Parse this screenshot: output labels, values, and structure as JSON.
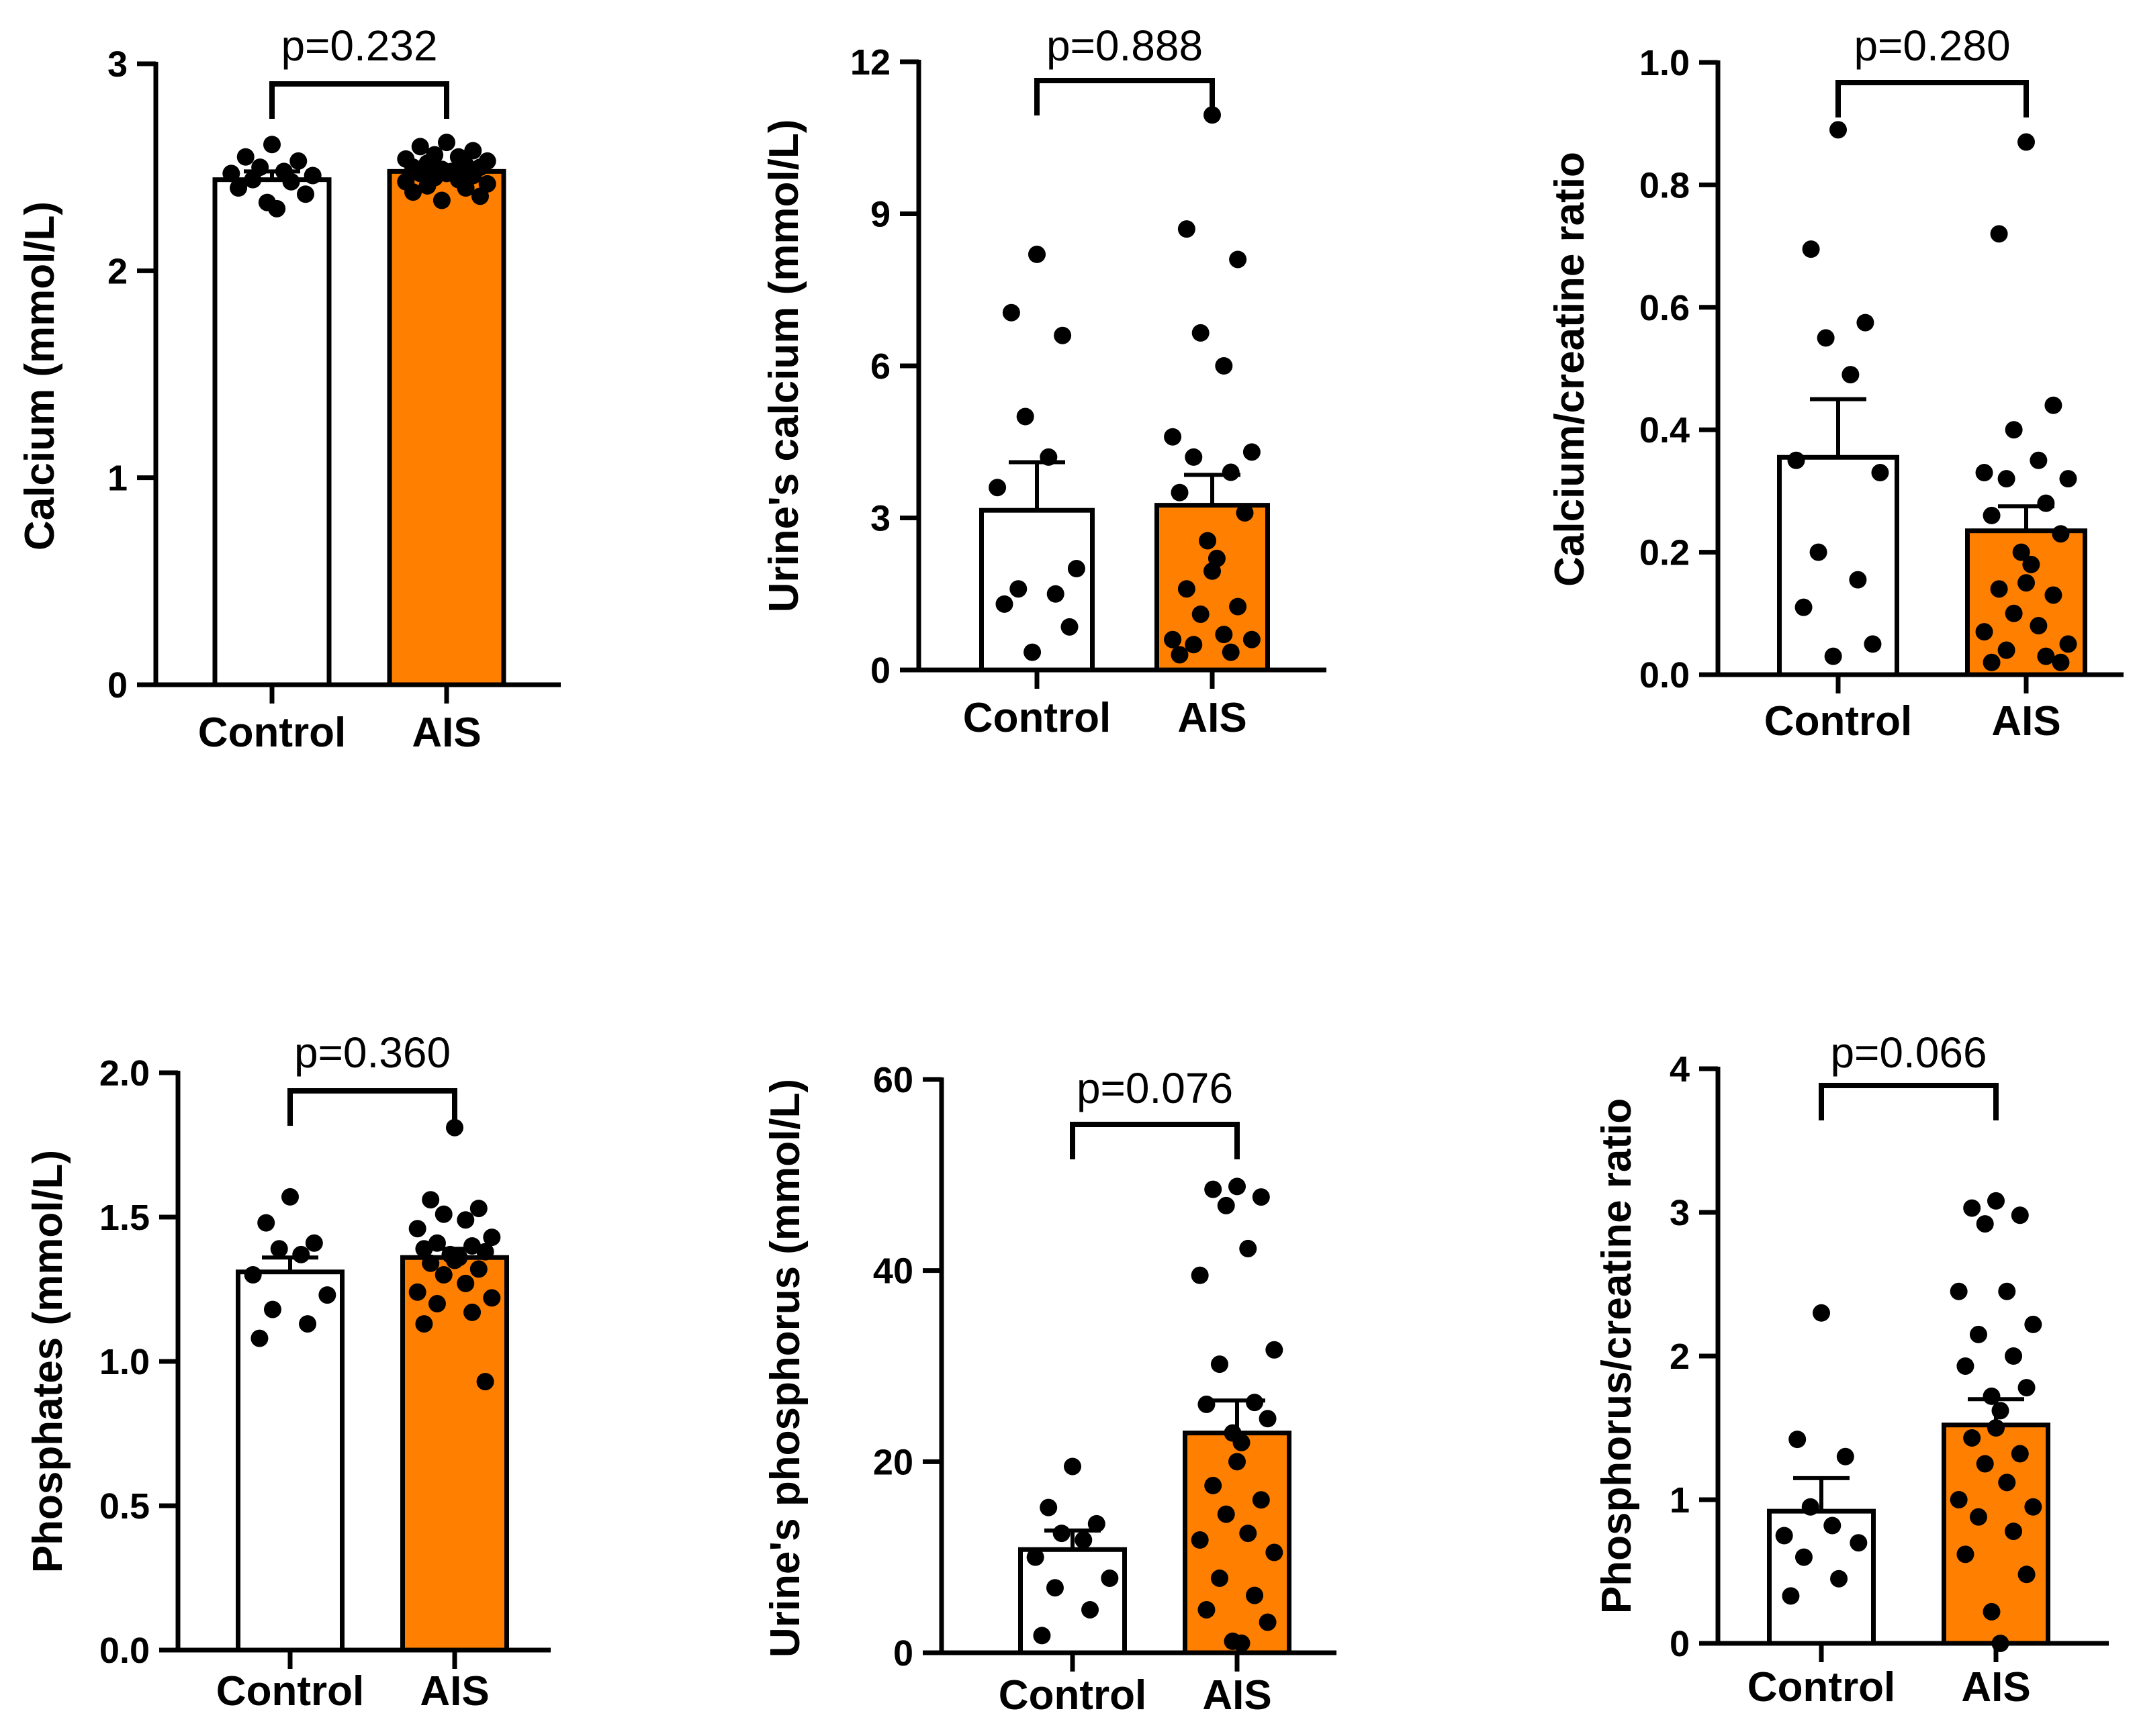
{
  "colors": {
    "control_fill": "#ffffff",
    "ais_fill": "#ff8000",
    "axis": "#000000",
    "point": "#000000"
  },
  "chart_data": [
    {
      "type": "bar",
      "ylabel": "Calcium (mmol/L)",
      "ylim": [
        0,
        3
      ],
      "yticks": [
        0,
        1,
        2,
        3
      ],
      "ytick_labels": [
        "0",
        "1",
        "2",
        "3"
      ],
      "categories": [
        "Control",
        "AIS"
      ],
      "series": [
        {
          "name": "Control",
          "mean": 2.44,
          "sem": 0.04,
          "points": [
            2.61,
            2.55,
            2.53,
            2.5,
            2.48,
            2.47,
            2.46,
            2.44,
            2.43,
            2.4,
            2.37,
            2.33,
            2.3
          ]
        },
        {
          "name": "AIS",
          "mean": 2.48,
          "sem": 0.02,
          "points": [
            2.62,
            2.6,
            2.58,
            2.56,
            2.55,
            2.54,
            2.53,
            2.52,
            2.51,
            2.5,
            2.5,
            2.49,
            2.48,
            2.47,
            2.47,
            2.46,
            2.45,
            2.44,
            2.43,
            2.42,
            2.41,
            2.4,
            2.38,
            2.36,
            2.34
          ]
        }
      ],
      "p_value": "p=0.232"
    },
    {
      "type": "bar",
      "ylabel": "Urine's calcium (mmol/L)",
      "ylim": [
        0,
        12
      ],
      "yticks": [
        0,
        3,
        6,
        9,
        12
      ],
      "ytick_labels": [
        "0",
        "3",
        "6",
        "9",
        "12"
      ],
      "categories": [
        "Control",
        "AIS"
      ],
      "series": [
        {
          "name": "Control",
          "mean": 3.15,
          "sem": 0.95,
          "points": [
            8.2,
            7.05,
            6.6,
            5.0,
            4.2,
            3.6,
            2.0,
            1.6,
            1.5,
            1.3,
            0.85,
            0.35
          ]
        },
        {
          "name": "AIS",
          "mean": 3.25,
          "sem": 0.6,
          "points": [
            10.95,
            8.7,
            8.1,
            6.65,
            6.0,
            4.6,
            4.3,
            4.2,
            3.9,
            3.5,
            3.1,
            2.55,
            2.2,
            1.95,
            1.6,
            1.25,
            1.1,
            0.7,
            0.6,
            0.6,
            0.5,
            0.35,
            0.3
          ]
        }
      ],
      "p_value": "p=0.888"
    },
    {
      "type": "bar",
      "ylabel": "Calcium/creatine ratio",
      "ylim": [
        0,
        1.0
      ],
      "yticks": [
        0,
        0.2,
        0.4,
        0.6,
        0.8,
        1.0
      ],
      "ytick_labels": [
        "0.0",
        "0.2",
        "0.4",
        "0.6",
        "0.8",
        "1.0"
      ],
      "categories": [
        "Control",
        "AIS"
      ],
      "series": [
        {
          "name": "Control",
          "mean": 0.355,
          "sem": 0.095,
          "points": [
            0.89,
            0.695,
            0.575,
            0.55,
            0.49,
            0.35,
            0.33,
            0.2,
            0.155,
            0.11,
            0.05,
            0.03
          ]
        },
        {
          "name": "AIS",
          "mean": 0.235,
          "sem": 0.04,
          "points": [
            0.87,
            0.72,
            0.44,
            0.4,
            0.35,
            0.33,
            0.32,
            0.32,
            0.28,
            0.26,
            0.23,
            0.2,
            0.18,
            0.15,
            0.14,
            0.13,
            0.1,
            0.08,
            0.07,
            0.05,
            0.04,
            0.03,
            0.02,
            0.02
          ]
        }
      ],
      "p_value": "p=0.280"
    },
    {
      "type": "bar",
      "ylabel": "Phosphates (mmol/L)",
      "ylim": [
        0,
        2.0
      ],
      "yticks": [
        0,
        0.5,
        1.0,
        1.5,
        2.0
      ],
      "ytick_labels": [
        "0.0",
        "0.5",
        "1.0",
        "1.5",
        "2.0"
      ],
      "categories": [
        "Control",
        "AIS"
      ],
      "series": [
        {
          "name": "Control",
          "mean": 1.31,
          "sem": 0.05,
          "points": [
            1.57,
            1.48,
            1.41,
            1.39,
            1.37,
            1.3,
            1.23,
            1.18,
            1.13,
            1.08
          ]
        },
        {
          "name": "AIS",
          "mean": 1.36,
          "sem": 0.03,
          "points": [
            1.81,
            1.56,
            1.53,
            1.51,
            1.49,
            1.46,
            1.43,
            1.41,
            1.4,
            1.39,
            1.38,
            1.37,
            1.36,
            1.35,
            1.34,
            1.32,
            1.3,
            1.27,
            1.24,
            1.22,
            1.2,
            1.17,
            1.13,
            0.93
          ]
        }
      ],
      "p_value": "p=0.360"
    },
    {
      "type": "bar",
      "ylabel": "Urine's phosphorus  (mmol/L)",
      "ylim": [
        0,
        60
      ],
      "yticks": [
        0,
        20,
        40,
        60
      ],
      "ytick_labels": [
        "0",
        "20",
        "40",
        "60"
      ],
      "categories": [
        "Control",
        "AIS"
      ],
      "series": [
        {
          "name": "Control",
          "mean": 10.8,
          "sem": 2.0,
          "points": [
            19.5,
            15.2,
            13.5,
            12.5,
            11.8,
            10.0,
            7.8,
            6.8,
            4.5,
            1.8
          ]
        },
        {
          "name": "AIS",
          "mean": 23.0,
          "sem": 3.4,
          "points": [
            48.8,
            48.5,
            47.7,
            46.8,
            42.3,
            39.5,
            31.7,
            30.2,
            26.2,
            26.0,
            24.5,
            23.0,
            22.0,
            20.0,
            17.5,
            16.0,
            14.5,
            12.5,
            11.8,
            10.5,
            7.8,
            6.0,
            4.5,
            3.2,
            1.2,
            1.0
          ]
        }
      ],
      "p_value": "p=0.076"
    },
    {
      "type": "bar",
      "ylabel": "Phosphorus/creatine ratio",
      "ylim": [
        0,
        4
      ],
      "yticks": [
        0,
        1,
        2,
        3,
        4
      ],
      "ytick_labels": [
        "0",
        "1",
        "2",
        "3",
        "4"
      ],
      "categories": [
        "Control",
        "AIS"
      ],
      "series": [
        {
          "name": "Control",
          "mean": 0.92,
          "sem": 0.23,
          "points": [
            2.3,
            1.42,
            1.3,
            0.95,
            0.82,
            0.75,
            0.7,
            0.6,
            0.45,
            0.33
          ]
        },
        {
          "name": "AIS",
          "mean": 1.52,
          "sem": 0.18,
          "points": [
            3.08,
            3.03,
            2.98,
            2.92,
            2.45,
            2.45,
            2.22,
            2.15,
            2.0,
            1.93,
            1.78,
            1.72,
            1.62,
            1.5,
            1.43,
            1.32,
            1.25,
            1.12,
            1.0,
            0.95,
            0.88,
            0.78,
            0.62,
            0.48,
            0.22,
            0.0
          ]
        }
      ],
      "p_value": "p=0.066"
    }
  ]
}
